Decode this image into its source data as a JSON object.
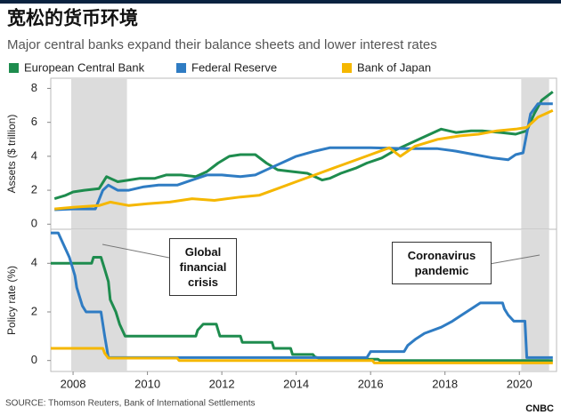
{
  "title": "宽松的货币环境",
  "subtitle": "Major central banks expand their balance sheets and lower interest rates",
  "source": "SOURCE: Thomson Reuters, Bank of International Settlements",
  "logo": "CNBC",
  "chart_data": [
    {
      "type": "line",
      "ylabel": "Assets ($ trillion)",
      "xlim": [
        2007.4,
        2021.0
      ],
      "ylim": [
        -0.3,
        8.6
      ],
      "yticks": [
        0,
        2,
        4,
        6,
        8
      ],
      "shading": [
        [
          2007.95,
          2009.45
        ],
        [
          2020.05,
          2020.8
        ]
      ],
      "series": [
        {
          "name": "European Central Bank",
          "color": "#1e8c4e",
          "x": [
            2007.5,
            2007.8,
            2008.0,
            2008.3,
            2008.7,
            2008.9,
            2009.2,
            2009.5,
            2009.8,
            2010.2,
            2010.5,
            2010.9,
            2011.3,
            2011.6,
            2011.9,
            2012.2,
            2012.5,
            2012.9,
            2013.2,
            2013.5,
            2013.9,
            2014.3,
            2014.7,
            2014.9,
            2015.2,
            2015.6,
            2015.9,
            2016.3,
            2016.7,
            2017.0,
            2017.5,
            2017.9,
            2018.3,
            2018.7,
            2019.0,
            2019.5,
            2019.9,
            2020.2,
            2020.4,
            2020.6,
            2020.9
          ],
          "values": [
            1.5,
            1.7,
            1.9,
            2.0,
            2.1,
            2.8,
            2.5,
            2.6,
            2.7,
            2.7,
            2.9,
            2.9,
            2.8,
            3.1,
            3.6,
            4.0,
            4.1,
            4.1,
            3.6,
            3.2,
            3.1,
            3.0,
            2.6,
            2.7,
            3.0,
            3.3,
            3.6,
            3.9,
            4.4,
            4.7,
            5.2,
            5.6,
            5.4,
            5.5,
            5.5,
            5.4,
            5.3,
            5.5,
            6.5,
            7.3,
            7.8
          ]
        },
        {
          "name": "Federal Reserve",
          "color": "#2f7cc3",
          "x": [
            2007.5,
            2008.0,
            2008.6,
            2008.8,
            2008.95,
            2009.2,
            2009.5,
            2009.9,
            2010.3,
            2010.8,
            2011.2,
            2011.6,
            2012.0,
            2012.5,
            2012.9,
            2013.3,
            2013.7,
            2014.0,
            2014.5,
            2014.9,
            2016.0,
            2017.0,
            2017.8,
            2018.3,
            2018.8,
            2019.3,
            2019.7,
            2019.9,
            2020.1,
            2020.3,
            2020.5,
            2020.9
          ],
          "values": [
            0.85,
            0.9,
            0.9,
            2.0,
            2.3,
            2.0,
            2.0,
            2.2,
            2.3,
            2.3,
            2.6,
            2.9,
            2.9,
            2.8,
            2.9,
            3.3,
            3.7,
            4.0,
            4.3,
            4.5,
            4.5,
            4.45,
            4.45,
            4.3,
            4.1,
            3.9,
            3.8,
            4.1,
            4.2,
            6.5,
            7.1,
            7.1
          ]
        },
        {
          "name": "Bank of Japan",
          "color": "#f5b700",
          "x": [
            2007.5,
            2008.0,
            2008.7,
            2009.0,
            2009.5,
            2010.0,
            2010.6,
            2011.2,
            2011.8,
            2012.5,
            2013.0,
            2013.5,
            2014.0,
            2014.5,
            2015.0,
            2015.5,
            2016.0,
            2016.5,
            2016.8,
            2017.2,
            2017.8,
            2018.4,
            2018.9,
            2019.4,
            2019.9,
            2020.2,
            2020.5,
            2020.9
          ],
          "values": [
            0.9,
            1.0,
            1.1,
            1.3,
            1.1,
            1.2,
            1.3,
            1.5,
            1.4,
            1.6,
            1.7,
            2.1,
            2.5,
            2.9,
            3.3,
            3.7,
            4.1,
            4.5,
            4.0,
            4.6,
            5.0,
            5.2,
            5.3,
            5.5,
            5.6,
            5.7,
            6.3,
            6.7
          ]
        }
      ]
    },
    {
      "type": "line",
      "ylabel": "Policy rate (%)",
      "xlim": [
        2007.4,
        2021.0
      ],
      "ylim": [
        -0.45,
        5.4
      ],
      "yticks": [
        0,
        2,
        4
      ],
      "xticks": [
        2008,
        2010,
        2012,
        2014,
        2016,
        2018,
        2020
      ],
      "shading": [
        [
          2007.95,
          2009.45
        ],
        [
          2020.05,
          2020.8
        ]
      ],
      "annotations": [
        "Global financial crisis",
        "Coronavirus pandemic"
      ],
      "series": [
        {
          "name": "European Central Bank",
          "color": "#1e8c4e",
          "x": [
            2007.4,
            2008.5,
            2008.55,
            2008.75,
            2008.85,
            2008.95,
            2009.0,
            2009.15,
            2009.25,
            2009.4,
            2011.3,
            2011.35,
            2011.5,
            2011.85,
            2011.9,
            2011.95,
            2012.5,
            2012.55,
            2013.35,
            2013.4,
            2013.85,
            2013.9,
            2014.45,
            2014.5,
            2014.7,
            2016.2,
            2016.25,
            2020.9
          ],
          "values": [
            4.0,
            4.0,
            4.25,
            4.25,
            3.75,
            3.25,
            2.5,
            2.0,
            1.5,
            1.0,
            1.0,
            1.25,
            1.5,
            1.5,
            1.25,
            1.0,
            1.0,
            0.75,
            0.75,
            0.5,
            0.5,
            0.25,
            0.25,
            0.15,
            0.05,
            0.05,
            0.0,
            0.0
          ]
        },
        {
          "name": "Federal Reserve",
          "color": "#2f7cc3",
          "x": [
            2007.4,
            2007.6,
            2007.75,
            2007.9,
            2008.05,
            2008.1,
            2008.25,
            2008.35,
            2008.75,
            2008.85,
            2008.95,
            2015.9,
            2016.0,
            2016.9,
            2017.0,
            2017.2,
            2017.45,
            2017.9,
            2018.2,
            2018.45,
            2018.7,
            2018.95,
            2019.55,
            2019.6,
            2019.7,
            2019.85,
            2020.15,
            2020.2,
            2020.9
          ],
          "values": [
            5.25,
            5.25,
            4.75,
            4.25,
            3.5,
            3.0,
            2.25,
            2.0,
            2.0,
            1.0,
            0.12,
            0.12,
            0.37,
            0.37,
            0.62,
            0.87,
            1.12,
            1.37,
            1.62,
            1.87,
            2.12,
            2.37,
            2.37,
            2.12,
            1.87,
            1.62,
            1.62,
            0.12,
            0.12
          ]
        },
        {
          "name": "Bank of Japan",
          "color": "#f5b700",
          "x": [
            2007.4,
            2008.8,
            2008.85,
            2008.95,
            2010.8,
            2010.85,
            2016.05,
            2016.1,
            2020.9
          ],
          "values": [
            0.5,
            0.5,
            0.3,
            0.1,
            0.1,
            0.0,
            0.0,
            -0.1,
            -0.1
          ]
        }
      ]
    }
  ]
}
